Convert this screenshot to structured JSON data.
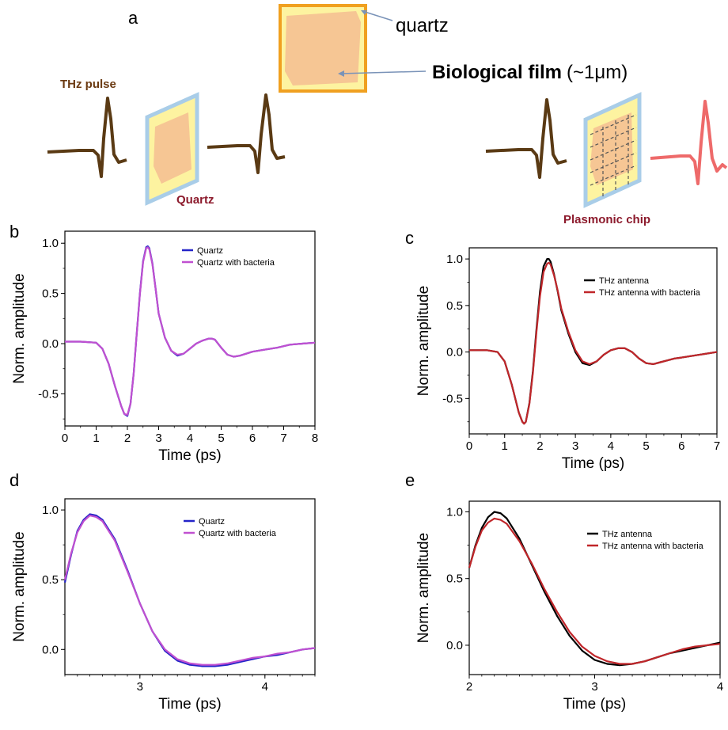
{
  "schematic": {
    "panel_label": "a",
    "thz_pulse": "THz pulse",
    "quartz_small": "quartz",
    "bio_film_bold": "Biological film",
    "bio_film_thickness": "(~1μm)",
    "quartz_label": "Quartz",
    "plasmonic_label": "Plasmonic chip"
  },
  "colors": {
    "quartz": "#2424c8",
    "quartz_bacteria": "#c050d0",
    "antenna": "#000000",
    "antenna_bacteria": "#c0262a",
    "pulse_brown": "#5a3a14",
    "pulse_red": "#ee6a6a",
    "film": "#f6c694",
    "quartz_fill": "#fdf3a0",
    "quartz_border": "#a9cde8",
    "anno_brown": "#6b3a12",
    "anno_maroon": "#8c1a2c"
  },
  "chart_data": [
    {
      "id": "b",
      "type": "line",
      "panel_label": "b",
      "xlabel": "Time (ps)",
      "ylabel": "Norm. amplitude",
      "xlim": [
        0,
        8
      ],
      "ylim": [
        -0.82,
        1.12
      ],
      "xticks": [
        0,
        1,
        2,
        3,
        4,
        5,
        6,
        7,
        8
      ],
      "yticks": [
        -0.5,
        0.0,
        0.5,
        1.0
      ],
      "legend_position": "top-right",
      "series": [
        {
          "name": "Quartz",
          "color_key": "quartz",
          "x": [
            0,
            0.5,
            1,
            1.2,
            1.4,
            1.6,
            1.8,
            1.9,
            2,
            2.1,
            2.2,
            2.3,
            2.4,
            2.5,
            2.6,
            2.65,
            2.7,
            2.8,
            2.9,
            3,
            3.2,
            3.4,
            3.6,
            3.8,
            4,
            4.2,
            4.4,
            4.6,
            4.7,
            4.8,
            5,
            5.2,
            5.4,
            5.6,
            5.8,
            6,
            6.4,
            6.8,
            7.2,
            7.6,
            8
          ],
          "y": [
            0.02,
            0.02,
            0.01,
            -0.05,
            -0.2,
            -0.42,
            -0.62,
            -0.7,
            -0.72,
            -0.6,
            -0.3,
            0.1,
            0.5,
            0.82,
            0.96,
            0.97,
            0.95,
            0.8,
            0.55,
            0.3,
            0.06,
            -0.07,
            -0.12,
            -0.1,
            -0.05,
            0.0,
            0.03,
            0.05,
            0.05,
            0.04,
            -0.04,
            -0.11,
            -0.13,
            -0.12,
            -0.1,
            -0.08,
            -0.06,
            -0.04,
            -0.01,
            0.0,
            0.01
          ]
        },
        {
          "name": "Quartz with bacteria",
          "color_key": "quartz_bacteria",
          "x": [
            0,
            0.5,
            1,
            1.2,
            1.4,
            1.6,
            1.8,
            1.9,
            2,
            2.1,
            2.2,
            2.3,
            2.4,
            2.5,
            2.6,
            2.65,
            2.7,
            2.8,
            2.9,
            3,
            3.2,
            3.4,
            3.6,
            3.8,
            4,
            4.2,
            4.4,
            4.6,
            4.7,
            4.8,
            5,
            5.2,
            5.4,
            5.6,
            5.8,
            6,
            6.4,
            6.8,
            7.2,
            7.6,
            8
          ],
          "y": [
            0.02,
            0.02,
            0.01,
            -0.05,
            -0.2,
            -0.42,
            -0.62,
            -0.7,
            -0.71,
            -0.6,
            -0.3,
            0.1,
            0.49,
            0.81,
            0.95,
            0.96,
            0.94,
            0.79,
            0.55,
            0.3,
            0.06,
            -0.07,
            -0.11,
            -0.1,
            -0.05,
            0.0,
            0.03,
            0.05,
            0.05,
            0.04,
            -0.04,
            -0.11,
            -0.13,
            -0.12,
            -0.1,
            -0.08,
            -0.06,
            -0.04,
            -0.01,
            0.0,
            0.01
          ]
        }
      ]
    },
    {
      "id": "c",
      "type": "line",
      "panel_label": "c",
      "xlabel": "Time (ps)",
      "ylabel": "Norm. amplitude",
      "xlim": [
        0,
        7
      ],
      "ylim": [
        -0.88,
        1.12
      ],
      "xticks": [
        0,
        1,
        2,
        3,
        4,
        5,
        6,
        7
      ],
      "yticks": [
        -0.5,
        0.0,
        0.5,
        1.0
      ],
      "legend_position": "top-right",
      "series": [
        {
          "name": "THz antenna",
          "color_key": "antenna",
          "x": [
            0,
            0.5,
            0.8,
            1,
            1.2,
            1.4,
            1.5,
            1.55,
            1.6,
            1.7,
            1.8,
            1.9,
            2,
            2.1,
            2.2,
            2.25,
            2.3,
            2.4,
            2.5,
            2.6,
            2.8,
            3,
            3.2,
            3.4,
            3.6,
            3.8,
            4,
            4.2,
            4.4,
            4.6,
            4.8,
            5,
            5.2,
            5.4,
            5.6,
            5.8,
            6,
            6.5,
            7
          ],
          "y": [
            0.02,
            0.02,
            0.0,
            -0.1,
            -0.35,
            -0.65,
            -0.75,
            -0.77,
            -0.75,
            -0.55,
            -0.2,
            0.25,
            0.65,
            0.92,
            1.0,
            1.0,
            0.97,
            0.83,
            0.65,
            0.45,
            0.2,
            0.0,
            -0.12,
            -0.14,
            -0.1,
            -0.03,
            0.02,
            0.04,
            0.04,
            0.0,
            -0.07,
            -0.12,
            -0.13,
            -0.11,
            -0.09,
            -0.07,
            -0.06,
            -0.03,
            0.0
          ]
        },
        {
          "name": "THz antenna with bacteria",
          "color_key": "antenna_bacteria",
          "x": [
            0,
            0.5,
            0.8,
            1,
            1.2,
            1.4,
            1.5,
            1.55,
            1.6,
            1.7,
            1.8,
            1.9,
            2,
            2.1,
            2.2,
            2.25,
            2.3,
            2.4,
            2.5,
            2.6,
            2.8,
            3,
            3.2,
            3.4,
            3.6,
            3.8,
            4,
            4.2,
            4.4,
            4.6,
            4.8,
            5,
            5.2,
            5.4,
            5.6,
            5.8,
            6,
            6.5,
            7
          ],
          "y": [
            0.02,
            0.02,
            0.0,
            -0.1,
            -0.35,
            -0.65,
            -0.75,
            -0.77,
            -0.75,
            -0.56,
            -0.22,
            0.22,
            0.6,
            0.86,
            0.95,
            0.96,
            0.94,
            0.82,
            0.66,
            0.47,
            0.22,
            0.02,
            -0.1,
            -0.13,
            -0.1,
            -0.03,
            0.02,
            0.04,
            0.04,
            0.0,
            -0.07,
            -0.12,
            -0.13,
            -0.11,
            -0.09,
            -0.07,
            -0.06,
            -0.03,
            0.0
          ]
        }
      ]
    },
    {
      "id": "d",
      "type": "line",
      "panel_label": "d",
      "xlabel": "Time (ps)",
      "ylabel": "Norm. amplitude",
      "xlim": [
        2.4,
        4.4
      ],
      "ylim": [
        -0.18,
        1.08
      ],
      "xticks": [
        3,
        4
      ],
      "yticks": [
        0.0,
        0.5,
        1.0
      ],
      "legend_position": "top-right",
      "series": [
        {
          "name": "Quartz",
          "color_key": "quartz",
          "x": [
            2.4,
            2.45,
            2.5,
            2.55,
            2.6,
            2.65,
            2.7,
            2.8,
            2.9,
            3.0,
            3.1,
            3.2,
            3.3,
            3.4,
            3.5,
            3.6,
            3.7,
            3.8,
            3.9,
            4.0,
            4.1,
            4.2,
            4.3,
            4.4
          ],
          "y": [
            0.48,
            0.68,
            0.85,
            0.93,
            0.97,
            0.96,
            0.93,
            0.79,
            0.57,
            0.33,
            0.13,
            -0.01,
            -0.08,
            -0.11,
            -0.12,
            -0.12,
            -0.11,
            -0.09,
            -0.07,
            -0.05,
            -0.04,
            -0.02,
            0.0,
            0.01
          ]
        },
        {
          "name": "Quartz with bacteria",
          "color_key": "quartz_bacteria",
          "x": [
            2.4,
            2.45,
            2.5,
            2.55,
            2.6,
            2.65,
            2.7,
            2.8,
            2.9,
            3.0,
            3.1,
            3.2,
            3.3,
            3.4,
            3.5,
            3.6,
            3.7,
            3.8,
            3.9,
            4.0,
            4.1,
            4.2,
            4.3,
            4.4
          ],
          "y": [
            0.5,
            0.69,
            0.84,
            0.92,
            0.96,
            0.95,
            0.92,
            0.78,
            0.56,
            0.33,
            0.13,
            0.0,
            -0.07,
            -0.1,
            -0.11,
            -0.11,
            -0.1,
            -0.08,
            -0.06,
            -0.05,
            -0.03,
            -0.02,
            0.0,
            0.01
          ]
        }
      ]
    },
    {
      "id": "e",
      "type": "line",
      "panel_label": "e",
      "xlabel": "Time (ps)",
      "ylabel": "Norm. amplitude",
      "xlim": [
        2,
        4
      ],
      "ylim": [
        -0.22,
        1.08
      ],
      "xticks": [
        2,
        3,
        4
      ],
      "yticks": [
        0.0,
        0.5,
        1.0
      ],
      "legend_position": "top-right",
      "series": [
        {
          "name": "THz antenna",
          "color_key": "antenna",
          "x": [
            2.0,
            2.05,
            2.1,
            2.15,
            2.2,
            2.25,
            2.3,
            2.4,
            2.5,
            2.6,
            2.7,
            2.8,
            2.9,
            3.0,
            3.1,
            3.2,
            3.3,
            3.4,
            3.5,
            3.6,
            3.7,
            3.8,
            3.9,
            4.0
          ],
          "y": [
            0.58,
            0.75,
            0.88,
            0.96,
            1.0,
            0.99,
            0.95,
            0.8,
            0.6,
            0.4,
            0.22,
            0.07,
            -0.04,
            -0.11,
            -0.14,
            -0.15,
            -0.14,
            -0.12,
            -0.09,
            -0.06,
            -0.04,
            -0.02,
            0.0,
            0.02
          ]
        },
        {
          "name": "THz antenna with bacteria",
          "color_key": "antenna_bacteria",
          "x": [
            2.0,
            2.05,
            2.1,
            2.15,
            2.2,
            2.25,
            2.3,
            2.4,
            2.5,
            2.6,
            2.7,
            2.8,
            2.9,
            3.0,
            3.1,
            3.2,
            3.3,
            3.4,
            3.5,
            3.6,
            3.7,
            3.8,
            3.9,
            4.0
          ],
          "y": [
            0.58,
            0.74,
            0.86,
            0.92,
            0.95,
            0.94,
            0.91,
            0.78,
            0.61,
            0.42,
            0.25,
            0.1,
            -0.01,
            -0.08,
            -0.12,
            -0.14,
            -0.14,
            -0.12,
            -0.09,
            -0.06,
            -0.03,
            -0.01,
            0.0,
            0.01
          ]
        }
      ]
    }
  ]
}
